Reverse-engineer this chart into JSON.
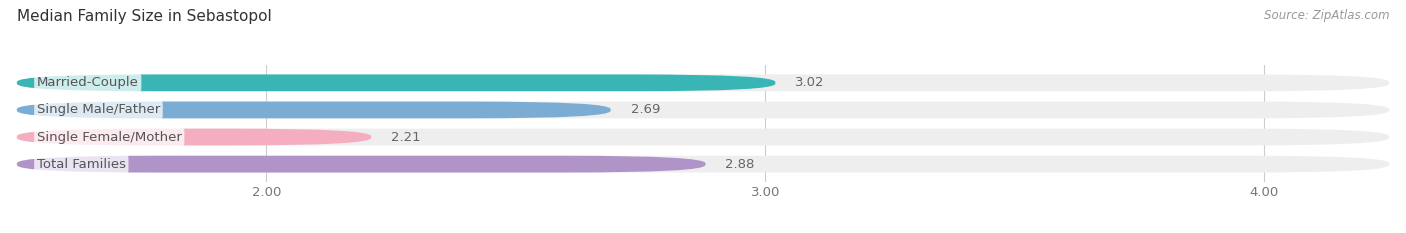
{
  "title": "Median Family Size in Sebastopol",
  "source": "Source: ZipAtlas.com",
  "categories": [
    "Married-Couple",
    "Single Male/Father",
    "Single Female/Mother",
    "Total Families"
  ],
  "values": [
    3.02,
    2.69,
    2.21,
    2.88
  ],
  "bar_colors": [
    "#3ab5b5",
    "#7badd4",
    "#f4aec0",
    "#b094c8"
  ],
  "bar_bg_color": "#eeeeee",
  "xlim": [
    1.5,
    4.25
  ],
  "xmin": 1.5,
  "xticks": [
    2.0,
    3.0,
    4.0
  ],
  "xtick_labels": [
    "2.00",
    "3.00",
    "4.00"
  ],
  "bar_height": 0.62,
  "bar_gap": 1.0,
  "label_fontsize": 9.5,
  "value_fontsize": 9.5,
  "title_fontsize": 11,
  "source_fontsize": 8.5,
  "background_color": "#ffffff",
  "grid_color": "#cccccc",
  "text_color": "#555555",
  "value_color": "#666666",
  "title_color": "#333333",
  "source_color": "#999999"
}
